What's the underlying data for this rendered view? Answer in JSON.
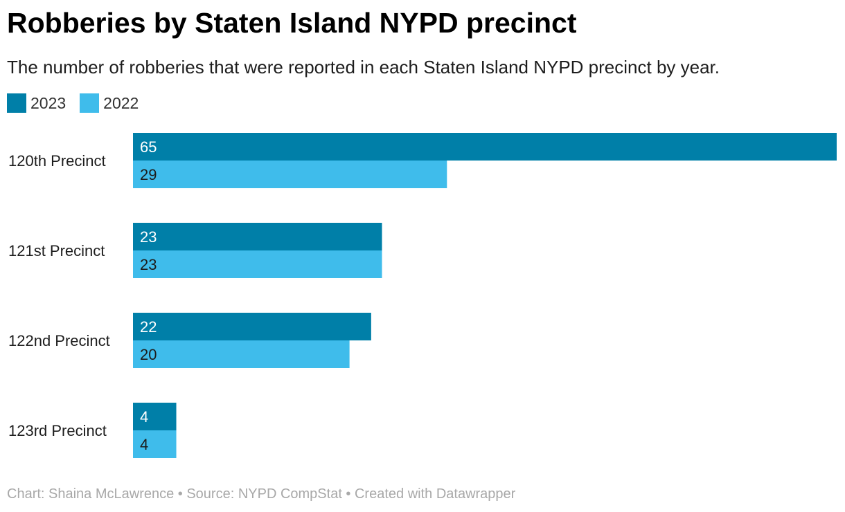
{
  "chart_data": {
    "type": "bar",
    "orientation": "horizontal",
    "title": "Robberies by Staten Island NYPD precinct",
    "subtitle": "The number of robberies that were reported in each Staten Island NYPD precinct by year.",
    "categories": [
      "120th Precinct",
      "121st Precinct",
      "122nd Precinct",
      "123rd Precinct"
    ],
    "series": [
      {
        "name": "2023",
        "values": [
          65,
          23,
          22,
          4
        ],
        "color": "#007fa8",
        "label_color": "#ffffff"
      },
      {
        "name": "2022",
        "values": [
          29,
          23,
          20,
          4
        ],
        "color": "#3fbceb",
        "label_color": "#1d1d1d"
      }
    ],
    "xlim": [
      0,
      65
    ],
    "xlabel": "",
    "ylabel": "",
    "grid": false,
    "legend_position": "top-left",
    "footer": "Chart: Shaina McLawrence • Source: NYPD CompStat • Created with Datawrapper"
  }
}
